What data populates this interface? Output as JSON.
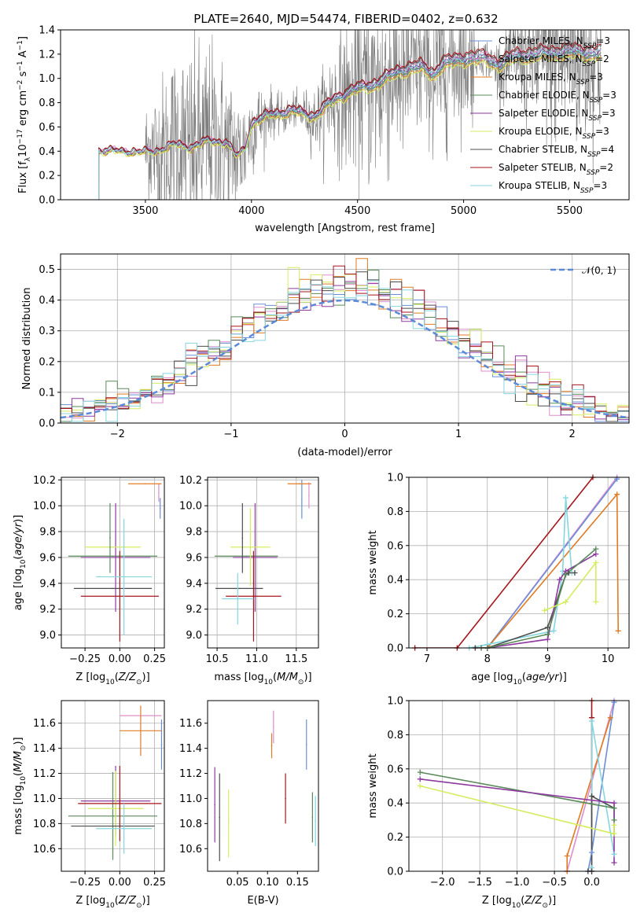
{
  "figure_title": "PLATE=2640, MJD=54474, FIBERID=0402, z=0.632",
  "colors": {
    "data": "#7f7f7f",
    "normal": "#5b8bd6",
    "models": [
      "#6a8fd8",
      "#de8ecc",
      "#e07b25",
      "#5a8a5a",
      "#8e3aa0",
      "#d4ed60",
      "#4d4d4d",
      "#a6151b",
      "#85d6e0"
    ]
  },
  "legend_labels": [
    {
      "pre": "Chabrier MILES, N",
      "sub": "SSP",
      "post": "=3"
    },
    {
      "pre": "Salpeter MILES, N",
      "sub": "SSP",
      "post": "=2"
    },
    {
      "pre": "Kroupa MILES, N",
      "sub": "SSP",
      "post": "=3"
    },
    {
      "pre": "Chabrier ELODIE, N",
      "sub": "SSP",
      "post": "=3"
    },
    {
      "pre": "Salpeter ELODIE, N",
      "sub": "SSP",
      "post": "=3"
    },
    {
      "pre": "Kroupa ELODIE, N",
      "sub": "SSP",
      "post": "=3"
    },
    {
      "pre": "Chabrier STELIB, N",
      "sub": "SSP",
      "post": "=4"
    },
    {
      "pre": "Salpeter STELIB, N",
      "sub": "SSP",
      "post": "=2"
    },
    {
      "pre": "Kroupa STELIB, N",
      "sub": "SSP",
      "post": "=3"
    }
  ],
  "chart_data": [
    {
      "id": "spectrum",
      "type": "line",
      "xlabel": "wavelength [Angstrom, rest frame]",
      "ylabel": "Flux [f_λ 10^-17 erg cm^-2 s^-1 A^-1]",
      "xlim": [
        3100,
        5780
      ],
      "ylim": [
        0,
        1.4
      ],
      "xticks": [
        3500,
        4000,
        4500,
        5000,
        5500
      ],
      "yticks": [
        0.0,
        0.2,
        0.4,
        0.6,
        0.8,
        1.0,
        1.2,
        1.4
      ],
      "grid": false,
      "legend": "upper-right",
      "data_x_range": [
        3500,
        5650
      ],
      "model_x_range": [
        3280,
        5650
      ],
      "model_flux_knots": [
        [
          3280,
          0.4
        ],
        [
          3330,
          0.39
        ],
        [
          3400,
          0.4
        ],
        [
          3480,
          0.38
        ],
        [
          3550,
          0.4
        ],
        [
          3650,
          0.45
        ],
        [
          3720,
          0.43
        ],
        [
          3800,
          0.48
        ],
        [
          3880,
          0.47
        ],
        [
          3930,
          0.35
        ],
        [
          3970,
          0.42
        ],
        [
          4000,
          0.62
        ],
        [
          4100,
          0.7
        ],
        [
          4200,
          0.72
        ],
        [
          4300,
          0.68
        ],
        [
          4400,
          0.83
        ],
        [
          4500,
          0.9
        ],
        [
          4600,
          0.95
        ],
        [
          4700,
          1.05
        ],
        [
          4800,
          1.08
        ],
        [
          4860,
          1.02
        ],
        [
          4900,
          1.1
        ],
        [
          5000,
          1.15
        ],
        [
          5100,
          1.15
        ],
        [
          5170,
          1.1
        ],
        [
          5250,
          1.17
        ],
        [
          5350,
          1.18
        ],
        [
          5450,
          1.2
        ],
        [
          5550,
          1.2
        ],
        [
          5650,
          1.19
        ]
      ],
      "model_scale": [
        1.0,
        1.04,
        0.98,
        1.0,
        1.02,
        0.97,
        1.05,
        1.06,
        1.02
      ]
    },
    {
      "id": "residuals",
      "type": "histogram",
      "xlabel": "(data-model)/error",
      "ylabel": "Normed distribution",
      "xlim": [
        -2.5,
        2.5
      ],
      "ylim": [
        0,
        0.55
      ],
      "xticks": [
        -2,
        -1,
        0,
        1,
        2
      ],
      "yticks": [
        0.0,
        0.1,
        0.2,
        0.3,
        0.4,
        0.5
      ],
      "grid": true,
      "legend": "upper-right",
      "legend_label": "N(0,1)",
      "bin_width": 0.1,
      "bins_from": -2.5
    },
    {
      "id": "age-vs-Z",
      "type": "scatter",
      "xlabel": "Z [log10(Z/Z_sun)]",
      "ylabel": "age [log10(age/yr)]",
      "xlim": [
        -0.42,
        0.32
      ],
      "ylim": [
        8.9,
        10.22
      ],
      "xticks": [
        -0.25,
        0.0,
        0.25
      ],
      "yticks": [
        9.0,
        9.2,
        9.4,
        9.6,
        9.8,
        10.0,
        10.2
      ],
      "grid": true,
      "points": [
        {
          "m": 0,
          "x": 0.29,
          "y": 9.98,
          "ex": 0.0,
          "ey": 0.08
        },
        {
          "m": 1,
          "x": 0.28,
          "y": 10.1,
          "ex": 0.0,
          "ey": 0.07
        },
        {
          "m": 2,
          "x": 0.18,
          "y": 10.17,
          "ex": 0.12,
          "ey": 0.0
        },
        {
          "m": 3,
          "x": -0.05,
          "y": 9.61,
          "ex": 0.32,
          "ey": 0.0
        },
        {
          "m": 4,
          "x": -0.03,
          "y": 9.6,
          "ex": 0.25,
          "ey": 0.42
        },
        {
          "m": 5,
          "x": -0.05,
          "y": 9.68,
          "ex": 0.2,
          "ey": 0.0
        },
        {
          "m": 6,
          "x": -0.05,
          "y": 9.36,
          "ex": 0.28,
          "ey": 0.0
        },
        {
          "m": 7,
          "x": 0.0,
          "y": 9.3,
          "ex": 0.28,
          "ey": 0.35
        },
        {
          "m": 8,
          "x": 0.03,
          "y": 9.45,
          "ex": 0.2,
          "ey": 0.45
        },
        {
          "m": 3,
          "x": -0.07,
          "y": 9.75,
          "ex": 0.0,
          "ey": 0.27
        }
      ]
    },
    {
      "id": "age-vs-mass",
      "type": "scatter",
      "xlabel": "mass [log10(M/M_sun)]",
      "ylabel": "",
      "xlim": [
        10.38,
        11.78
      ],
      "ylim": [
        8.9,
        10.22
      ],
      "xticks": [
        10.5,
        11.0,
        11.5
      ],
      "yticks": [
        9.0,
        9.2,
        9.4,
        9.6,
        9.8,
        10.0,
        10.2
      ],
      "grid": true,
      "points": [
        {
          "m": 0,
          "x": 11.57,
          "y": 10.05,
          "ex": 0.0,
          "ey": 0.15
        },
        {
          "m": 1,
          "x": 11.66,
          "y": 10.08,
          "ex": 0.0,
          "ey": 0.1
        },
        {
          "m": 2,
          "x": 11.54,
          "y": 10.17,
          "ex": 0.15,
          "ey": 0.0
        },
        {
          "m": 3,
          "x": 10.87,
          "y": 9.61,
          "ex": 0.4,
          "ey": 0.0
        },
        {
          "m": 4,
          "x": 10.98,
          "y": 9.6,
          "ex": 0.28,
          "ey": 0.42
        },
        {
          "m": 5,
          "x": 10.92,
          "y": 9.68,
          "ex": 0.25,
          "ey": 0.3
        },
        {
          "m": 6,
          "x": 10.78,
          "y": 9.36,
          "ex": 0.3,
          "ey": 0.0
        },
        {
          "m": 7,
          "x": 10.96,
          "y": 9.3,
          "ex": 0.35,
          "ey": 0.35
        },
        {
          "m": 8,
          "x": 10.76,
          "y": 9.28,
          "ex": 0.2,
          "ey": 0.2
        },
        {
          "m": 6,
          "x": 10.82,
          "y": 9.75,
          "ex": 0.0,
          "ey": 0.27
        }
      ]
    },
    {
      "id": "massweight-vs-age",
      "type": "line",
      "xlabel": "age [log10(age/yr)]",
      "ylabel": "mass weight",
      "xlim": [
        6.7,
        10.35
      ],
      "ylim": [
        0,
        1.0
      ],
      "xticks": [
        7,
        8,
        9,
        10
      ],
      "yticks": [
        0.0,
        0.2,
        0.4,
        0.6,
        0.8,
        1.0
      ],
      "grid": true,
      "series": [
        {
          "m": 7,
          "x": [
            6.8,
            7.5,
            9.75
          ],
          "y": [
            0.0,
            0.0,
            1.0
          ]
        },
        {
          "m": 1,
          "x": [
            7.8,
            8.0,
            10.15
          ],
          "y": [
            0.0,
            0.0,
            1.0
          ]
        },
        {
          "m": 0,
          "x": [
            7.8,
            8.0,
            10.15
          ],
          "y": [
            0.0,
            0.0,
            0.99
          ]
        },
        {
          "m": 2,
          "x": [
            7.8,
            8.0,
            10.15,
            10.17
          ],
          "y": [
            0.0,
            0.0,
            0.9,
            0.1
          ]
        },
        {
          "m": 8,
          "x": [
            7.7,
            8.0,
            9.1,
            9.25,
            9.3,
            9.4
          ],
          "y": [
            0.0,
            0.02,
            0.1,
            0.45,
            0.88,
            0.44
          ]
        },
        {
          "m": 6,
          "x": [
            7.8,
            8.0,
            9.0,
            9.3,
            9.35,
            9.45
          ],
          "y": [
            0.0,
            0.0,
            0.12,
            0.43,
            0.44,
            0.44
          ]
        },
        {
          "m": 4,
          "x": [
            7.9,
            8.0,
            9.0,
            9.2,
            9.3,
            9.8
          ],
          "y": [
            0.0,
            0.0,
            0.05,
            0.4,
            0.45,
            0.55
          ]
        },
        {
          "m": 3,
          "x": [
            7.9,
            8.0,
            9.0,
            9.3,
            9.8
          ],
          "y": [
            0.0,
            0.0,
            0.08,
            0.43,
            0.58
          ]
        },
        {
          "m": 5,
          "x": [
            8.95,
            9.3,
            9.8,
            9.8
          ],
          "y": [
            0.22,
            0.27,
            0.5,
            0.27
          ]
        }
      ]
    },
    {
      "id": "mass-vs-Z",
      "type": "scatter",
      "xlabel": "Z [log10(Z/Z_sun)]",
      "ylabel": "mass [log10(M/M_sun)]",
      "xlim": [
        -0.42,
        0.32
      ],
      "ylim": [
        10.42,
        11.78
      ],
      "xticks": [
        -0.25,
        0.0,
        0.25
      ],
      "yticks": [
        10.6,
        10.8,
        11.0,
        11.2,
        11.4,
        11.6
      ],
      "grid": true,
      "points": [
        {
          "m": 0,
          "x": 0.3,
          "y": 11.43,
          "ex": 0.0,
          "ey": 0.2
        },
        {
          "m": 1,
          "x": 0.15,
          "y": 11.66,
          "ex": 0.15,
          "ey": 0.0
        },
        {
          "m": 2,
          "x": 0.15,
          "y": 11.54,
          "ex": 0.15,
          "ey": 0.2
        },
        {
          "m": 3,
          "x": -0.05,
          "y": 10.86,
          "ex": 0.32,
          "ey": 0.35
        },
        {
          "m": 4,
          "x": -0.03,
          "y": 10.98,
          "ex": 0.25,
          "ey": 0.28
        },
        {
          "m": 5,
          "x": -0.03,
          "y": 10.92,
          "ex": 0.2,
          "ey": 0.3
        },
        {
          "m": 6,
          "x": -0.05,
          "y": 10.78,
          "ex": 0.3,
          "ey": 0.0
        },
        {
          "m": 7,
          "x": 0.0,
          "y": 10.96,
          "ex": 0.3,
          "ey": 0.3
        },
        {
          "m": 8,
          "x": 0.03,
          "y": 10.76,
          "ex": 0.2,
          "ey": 0.2
        }
      ]
    },
    {
      "id": "mass-vs-EBV",
      "type": "scatter",
      "xlabel": "E(B-V)",
      "ylabel": "",
      "xlim": [
        0.0,
        0.185
      ],
      "ylim": [
        10.42,
        11.78
      ],
      "xticks": [
        0.05,
        0.1,
        0.15
      ],
      "yticks": [
        10.6,
        10.8,
        11.0,
        11.2,
        11.4,
        11.6
      ],
      "grid": false,
      "points": [
        {
          "m": 0,
          "x": 0.165,
          "y": 11.43,
          "ex": 0.0,
          "ey": 0.2
        },
        {
          "m": 1,
          "x": 0.11,
          "y": 11.57,
          "ex": 0.0,
          "ey": 0.13
        },
        {
          "m": 2,
          "x": 0.107,
          "y": 11.42,
          "ex": 0.0,
          "ey": 0.1
        },
        {
          "m": 3,
          "x": 0.175,
          "y": 10.85,
          "ex": 0.0,
          "ey": 0.2
        },
        {
          "m": 4,
          "x": 0.012,
          "y": 10.95,
          "ex": 0.0,
          "ey": 0.3
        },
        {
          "m": 5,
          "x": 0.035,
          "y": 10.8,
          "ex": 0.0,
          "ey": 0.27
        },
        {
          "m": 6,
          "x": 0.02,
          "y": 10.85,
          "ex": 0.0,
          "ey": 0.35
        },
        {
          "m": 7,
          "x": 0.13,
          "y": 11.0,
          "ex": 0.0,
          "ey": 0.2
        },
        {
          "m": 8,
          "x": 0.18,
          "y": 10.82,
          "ex": 0.0,
          "ey": 0.2
        }
      ]
    },
    {
      "id": "massweight-vs-Z",
      "type": "line",
      "xlabel": "Z [log10(Z/Z_sun)]",
      "ylabel": "mass weight",
      "xlim": [
        -2.45,
        0.5
      ],
      "ylim": [
        0,
        1.0
      ],
      "xticks": [
        -2.0,
        -1.5,
        -1.0,
        -0.5,
        0.0
      ],
      "yticks": [
        0.0,
        0.2,
        0.4,
        0.6,
        0.8,
        1.0
      ],
      "grid": true,
      "series": [
        {
          "m": 7,
          "x": [
            0.0,
            0.0,
            0.0
          ],
          "y": [
            0.0,
            0.9,
            1.0
          ]
        },
        {
          "m": 1,
          "x": [
            -0.33,
            -0.33,
            0.3
          ],
          "y": [
            0.0,
            0.0,
            1.0
          ]
        },
        {
          "m": 0,
          "x": [
            -0.05,
            0.0,
            0.3
          ],
          "y": [
            0.0,
            0.11,
            0.99
          ]
        },
        {
          "m": 2,
          "x": [
            -0.33,
            -0.33,
            0.25
          ],
          "y": [
            0.0,
            0.09,
            0.9
          ]
        },
        {
          "m": 8,
          "x": [
            0.0,
            0.0,
            0.0,
            0.3
          ],
          "y": [
            0.0,
            0.02,
            0.88,
            0.1
          ]
        },
        {
          "m": 6,
          "x": [
            -0.05,
            0.0,
            0.0,
            0.3
          ],
          "y": [
            0.0,
            0.0,
            0.44,
            0.37
          ]
        },
        {
          "m": 3,
          "x": [
            -2.3,
            0.3,
            0.3
          ],
          "y": [
            0.58,
            0.37,
            0.3
          ]
        },
        {
          "m": 4,
          "x": [
            -2.3,
            0.3,
            0.3
          ],
          "y": [
            0.54,
            0.4,
            0.05
          ]
        },
        {
          "m": 5,
          "x": [
            -2.3,
            0.3,
            0.3
          ],
          "y": [
            0.5,
            0.22,
            0.27
          ]
        }
      ]
    }
  ]
}
